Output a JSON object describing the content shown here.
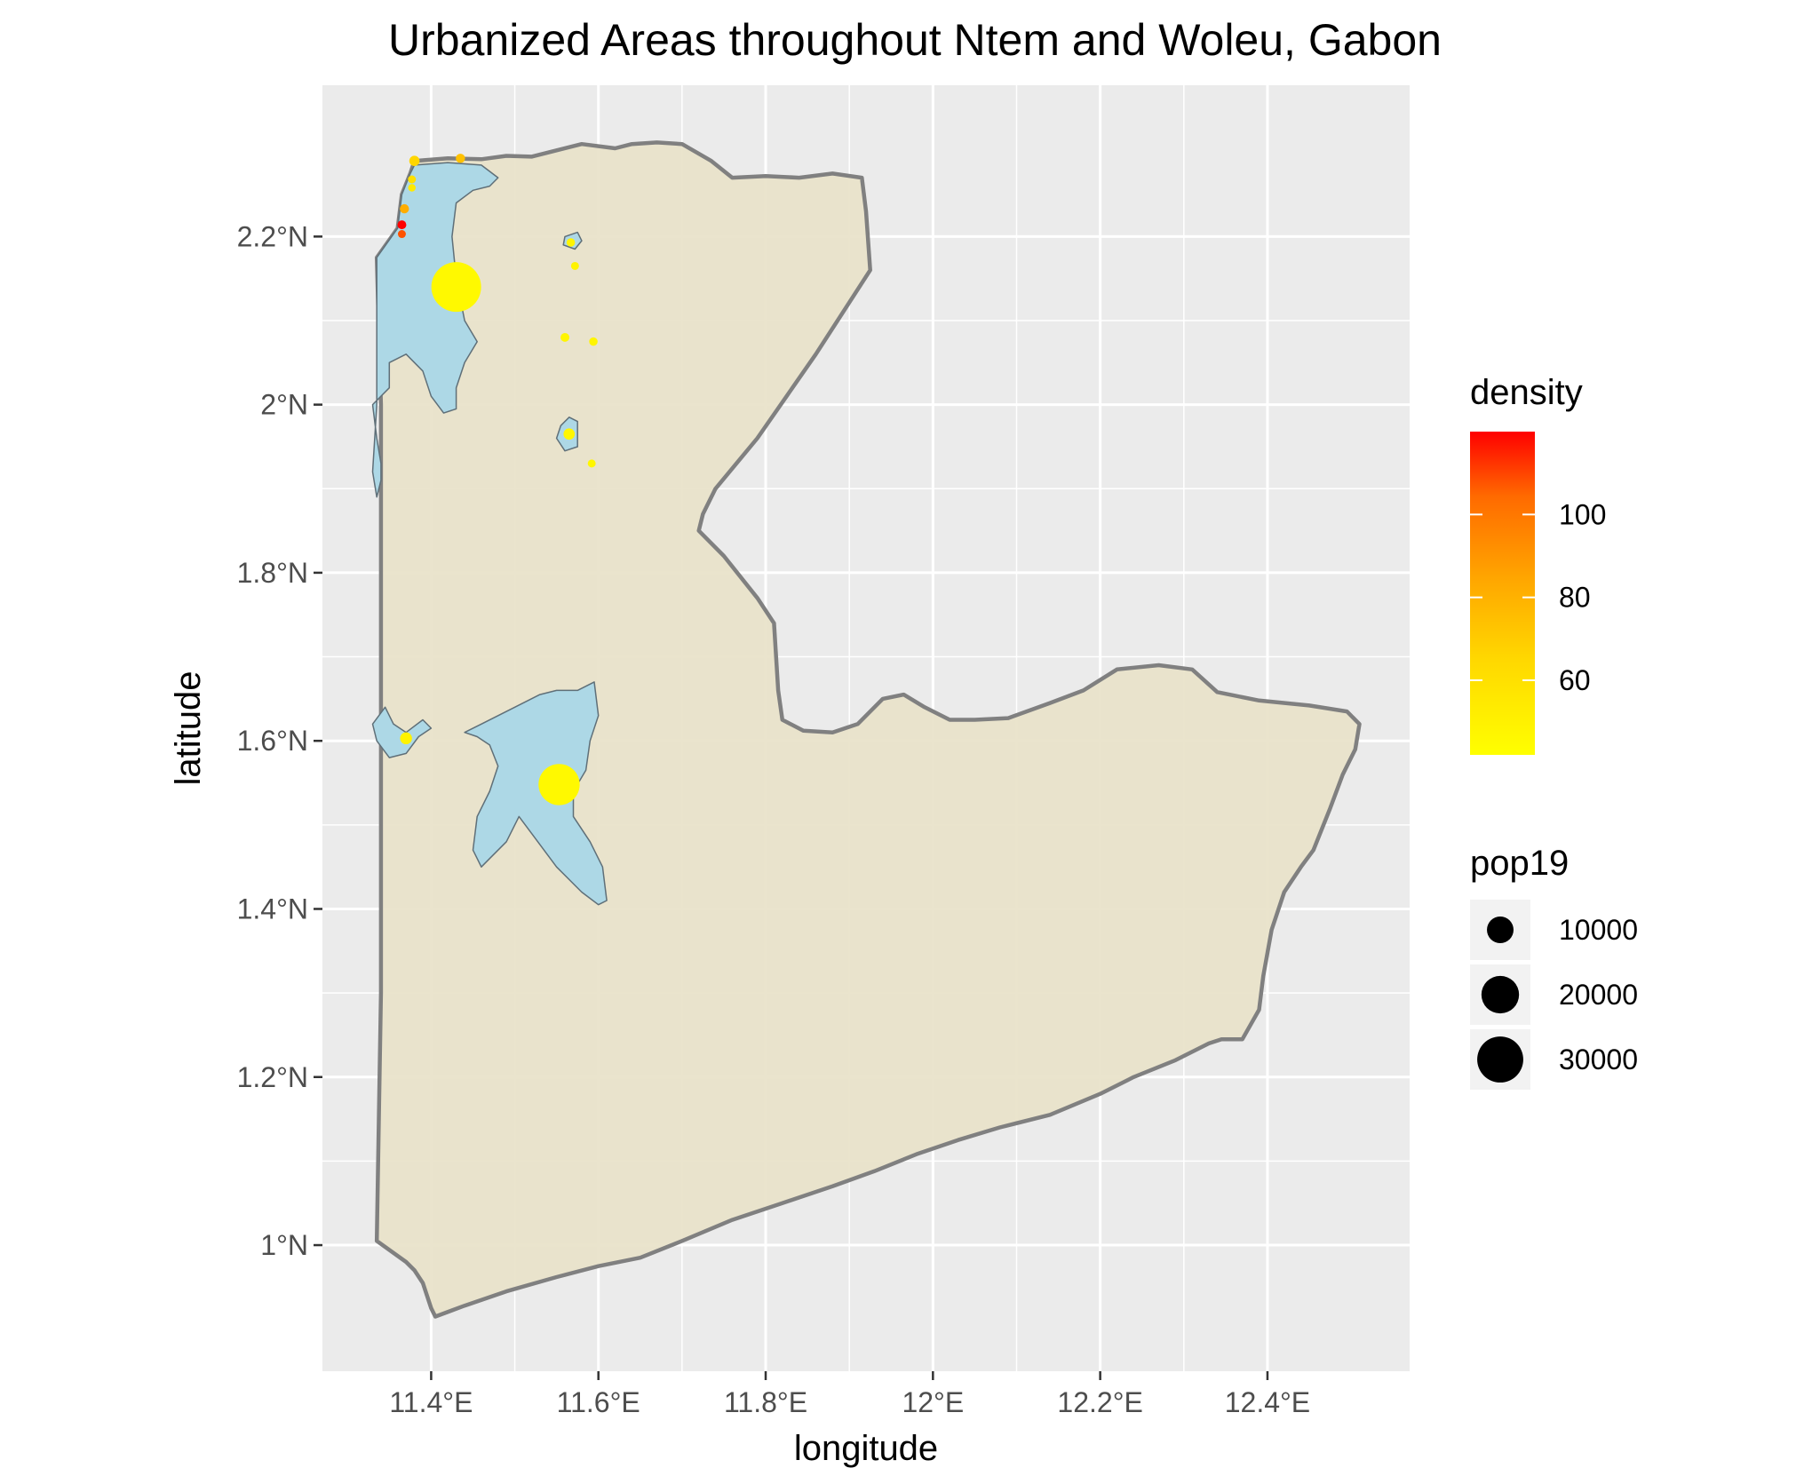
{
  "title": "Urbanized Areas throughout Ntem and Woleu, Gabon",
  "chart_data": {
    "type": "map",
    "xlabel": "longitude",
    "ylabel": "latitude",
    "xlim": [
      11.27,
      12.57
    ],
    "ylim": [
      0.85,
      2.38
    ],
    "x_ticks": [
      {
        "value": 11.4,
        "label": "11.4°E"
      },
      {
        "value": 11.6,
        "label": "11.6°E"
      },
      {
        "value": 11.8,
        "label": "11.8°E"
      },
      {
        "value": 12.0,
        "label": "12°E"
      },
      {
        "value": 12.2,
        "label": "12.2°E"
      },
      {
        "value": 12.4,
        "label": "12.4°E"
      }
    ],
    "y_ticks": [
      {
        "value": 1.0,
        "label": "1°N"
      },
      {
        "value": 1.2,
        "label": "1.2°N"
      },
      {
        "value": 1.4,
        "label": "1.4°N"
      },
      {
        "value": 1.6,
        "label": "1.6°N"
      },
      {
        "value": 1.8,
        "label": "1.8°N"
      },
      {
        "value": 2.0,
        "label": "2°N"
      },
      {
        "value": 2.2,
        "label": "2.2°N"
      }
    ],
    "grid": true,
    "colors": {
      "panel": "#ebebeb",
      "grid": "#ffffff",
      "province_fill": "#e8e2c9",
      "province_stroke": "#808080",
      "urban_fill": "#add8e6",
      "urban_stroke": "#5f6f78"
    },
    "province_outline": [
      [
        11.335,
        2.175
      ],
      [
        11.36,
        2.21
      ],
      [
        11.365,
        2.25
      ],
      [
        11.375,
        2.275
      ],
      [
        11.38,
        2.29
      ],
      [
        11.42,
        2.293
      ],
      [
        11.46,
        2.292
      ],
      [
        11.49,
        2.296
      ],
      [
        11.52,
        2.295
      ],
      [
        11.54,
        2.3
      ],
      [
        11.58,
        2.31
      ],
      [
        11.62,
        2.305
      ],
      [
        11.64,
        2.31
      ],
      [
        11.67,
        2.312
      ],
      [
        11.7,
        2.31
      ],
      [
        11.735,
        2.29
      ],
      [
        11.76,
        2.27
      ],
      [
        11.8,
        2.272
      ],
      [
        11.84,
        2.27
      ],
      [
        11.88,
        2.275
      ],
      [
        11.915,
        2.27
      ],
      [
        11.92,
        2.23
      ],
      [
        11.925,
        2.16
      ],
      [
        11.86,
        2.06
      ],
      [
        11.79,
        1.96
      ],
      [
        11.74,
        1.9
      ],
      [
        11.725,
        1.87
      ],
      [
        11.72,
        1.85
      ],
      [
        11.75,
        1.82
      ],
      [
        11.79,
        1.77
      ],
      [
        11.81,
        1.74
      ],
      [
        11.815,
        1.66
      ],
      [
        11.82,
        1.625
      ],
      [
        11.845,
        1.612
      ],
      [
        11.88,
        1.61
      ],
      [
        11.91,
        1.62
      ],
      [
        11.94,
        1.65
      ],
      [
        11.965,
        1.655
      ],
      [
        11.99,
        1.64
      ],
      [
        12.02,
        1.625
      ],
      [
        12.05,
        1.625
      ],
      [
        12.09,
        1.627
      ],
      [
        12.14,
        1.645
      ],
      [
        12.18,
        1.66
      ],
      [
        12.22,
        1.685
      ],
      [
        12.27,
        1.69
      ],
      [
        12.31,
        1.685
      ],
      [
        12.34,
        1.658
      ],
      [
        12.39,
        1.648
      ],
      [
        12.45,
        1.642
      ],
      [
        12.495,
        1.635
      ],
      [
        12.51,
        1.62
      ],
      [
        12.505,
        1.59
      ],
      [
        12.49,
        1.56
      ],
      [
        12.475,
        1.52
      ],
      [
        12.455,
        1.47
      ],
      [
        12.44,
        1.45
      ],
      [
        12.42,
        1.42
      ],
      [
        12.405,
        1.375
      ],
      [
        12.395,
        1.32
      ],
      [
        12.39,
        1.28
      ],
      [
        12.37,
        1.245
      ],
      [
        12.345,
        1.245
      ],
      [
        12.33,
        1.24
      ],
      [
        12.29,
        1.22
      ],
      [
        12.24,
        1.2
      ],
      [
        12.2,
        1.18
      ],
      [
        12.14,
        1.155
      ],
      [
        12.08,
        1.14
      ],
      [
        12.03,
        1.125
      ],
      [
        11.98,
        1.108
      ],
      [
        11.93,
        1.088
      ],
      [
        11.88,
        1.07
      ],
      [
        11.82,
        1.05
      ],
      [
        11.76,
        1.03
      ],
      [
        11.7,
        1.005
      ],
      [
        11.65,
        0.985
      ],
      [
        11.6,
        0.975
      ],
      [
        11.55,
        0.962
      ],
      [
        11.49,
        0.945
      ],
      [
        11.44,
        0.928
      ],
      [
        11.405,
        0.915
      ],
      [
        11.4,
        0.925
      ],
      [
        11.39,
        0.955
      ],
      [
        11.38,
        0.97
      ],
      [
        11.37,
        0.98
      ],
      [
        11.335,
        1.005
      ],
      [
        11.34,
        1.3
      ],
      [
        11.34,
        1.5
      ],
      [
        11.34,
        1.8
      ],
      [
        11.34,
        2.0
      ],
      [
        11.335,
        2.175
      ]
    ],
    "urban_areas": [
      [
        [
          11.335,
          2.175
        ],
        [
          11.36,
          2.21
        ],
        [
          11.365,
          2.25
        ],
        [
          11.375,
          2.275
        ],
        [
          11.38,
          2.285
        ],
        [
          11.42,
          2.288
        ],
        [
          11.46,
          2.285
        ],
        [
          11.48,
          2.27
        ],
        [
          11.47,
          2.26
        ],
        [
          11.45,
          2.255
        ],
        [
          11.43,
          2.24
        ],
        [
          11.425,
          2.2
        ],
        [
          11.43,
          2.15
        ],
        [
          11.44,
          2.1
        ],
        [
          11.455,
          2.075
        ],
        [
          11.44,
          2.05
        ],
        [
          11.43,
          2.02
        ],
        [
          11.43,
          1.995
        ],
        [
          11.415,
          1.99
        ],
        [
          11.4,
          2.01
        ],
        [
          11.39,
          2.04
        ],
        [
          11.37,
          2.06
        ],
        [
          11.35,
          2.05
        ],
        [
          11.35,
          2.02
        ],
        [
          11.33,
          2.0
        ],
        [
          11.335,
          1.96
        ],
        [
          11.34,
          1.93
        ],
        [
          11.34,
          1.91
        ],
        [
          11.335,
          1.89
        ],
        [
          11.33,
          1.92
        ],
        [
          11.335,
          2.0
        ],
        [
          11.335,
          2.175
        ]
      ],
      [
        [
          11.56,
          2.2
        ],
        [
          11.575,
          2.205
        ],
        [
          11.58,
          2.195
        ],
        [
          11.572,
          2.185
        ],
        [
          11.558,
          2.19
        ],
        [
          11.56,
          2.2
        ]
      ],
      [
        [
          11.555,
          1.975
        ],
        [
          11.565,
          1.985
        ],
        [
          11.575,
          1.98
        ],
        [
          11.575,
          1.95
        ],
        [
          11.56,
          1.945
        ],
        [
          11.55,
          1.96
        ],
        [
          11.555,
          1.975
        ]
      ],
      [
        [
          11.33,
          1.62
        ],
        [
          11.335,
          1.6
        ],
        [
          11.35,
          1.58
        ],
        [
          11.37,
          1.585
        ],
        [
          11.385,
          1.605
        ],
        [
          11.4,
          1.615
        ],
        [
          11.39,
          1.625
        ],
        [
          11.37,
          1.61
        ],
        [
          11.355,
          1.62
        ],
        [
          11.345,
          1.64
        ],
        [
          11.33,
          1.62
        ]
      ],
      [
        [
          11.46,
          1.62
        ],
        [
          11.5,
          1.64
        ],
        [
          11.53,
          1.655
        ],
        [
          11.55,
          1.66
        ],
        [
          11.575,
          1.66
        ],
        [
          11.595,
          1.67
        ],
        [
          11.6,
          1.63
        ],
        [
          11.59,
          1.6
        ],
        [
          11.585,
          1.565
        ],
        [
          11.57,
          1.54
        ],
        [
          11.57,
          1.51
        ],
        [
          11.59,
          1.48
        ],
        [
          11.605,
          1.45
        ],
        [
          11.61,
          1.41
        ],
        [
          11.6,
          1.405
        ],
        [
          11.58,
          1.42
        ],
        [
          11.55,
          1.45
        ],
        [
          11.52,
          1.49
        ],
        [
          11.505,
          1.51
        ],
        [
          11.49,
          1.48
        ],
        [
          11.47,
          1.46
        ],
        [
          11.46,
          1.45
        ],
        [
          11.45,
          1.47
        ],
        [
          11.455,
          1.51
        ],
        [
          11.47,
          1.54
        ],
        [
          11.48,
          1.57
        ],
        [
          11.47,
          1.595
        ],
        [
          11.455,
          1.605
        ],
        [
          11.44,
          1.61
        ],
        [
          11.46,
          1.62
        ]
      ]
    ],
    "points": [
      {
        "lon": 11.43,
        "lat": 2.14,
        "density": 45,
        "pop19": 35000
      },
      {
        "lon": 11.553,
        "lat": 1.548,
        "density": 45,
        "pop19": 24000
      },
      {
        "lon": 11.37,
        "lat": 1.603,
        "density": 48,
        "pop19": 2000
      },
      {
        "lon": 11.565,
        "lat": 1.965,
        "density": 46,
        "pop19": 1800
      },
      {
        "lon": 11.567,
        "lat": 2.193,
        "density": 47,
        "pop19": 1000
      },
      {
        "lon": 11.38,
        "lat": 2.29,
        "density": 62,
        "pop19": 1500
      },
      {
        "lon": 11.435,
        "lat": 2.293,
        "density": 70,
        "pop19": 1200
      },
      {
        "lon": 11.377,
        "lat": 2.268,
        "density": 57,
        "pop19": 900
      },
      {
        "lon": 11.377,
        "lat": 2.258,
        "density": 52,
        "pop19": 800
      },
      {
        "lon": 11.368,
        "lat": 2.233,
        "density": 78,
        "pop19": 1200
      },
      {
        "lon": 11.365,
        "lat": 2.214,
        "density": 120,
        "pop19": 1100
      },
      {
        "lon": 11.365,
        "lat": 2.203,
        "density": 105,
        "pop19": 900
      },
      {
        "lon": 11.572,
        "lat": 2.165,
        "density": 48,
        "pop19": 900
      },
      {
        "lon": 11.56,
        "lat": 2.08,
        "density": 47,
        "pop19": 1100
      },
      {
        "lon": 11.594,
        "lat": 2.075,
        "density": 47,
        "pop19": 1000
      },
      {
        "lon": 11.592,
        "lat": 1.93,
        "density": 46,
        "pop19": 900
      }
    ],
    "density_legend": {
      "title": "density",
      "min": 42,
      "max": 120,
      "breaks": [
        {
          "value": 60,
          "label": "60"
        },
        {
          "value": 80,
          "label": "80"
        },
        {
          "value": 100,
          "label": "100"
        }
      ],
      "colors": [
        "#ffff00",
        "#ffd700",
        "#ffa500",
        "#ff6a00",
        "#ff0000"
      ]
    },
    "pop_legend": {
      "title": "pop19",
      "entries": [
        {
          "value": 10000,
          "label": "10000"
        },
        {
          "value": 20000,
          "label": "20000"
        },
        {
          "value": 30000,
          "label": "30000"
        }
      ],
      "max_pop": 35000
    }
  }
}
